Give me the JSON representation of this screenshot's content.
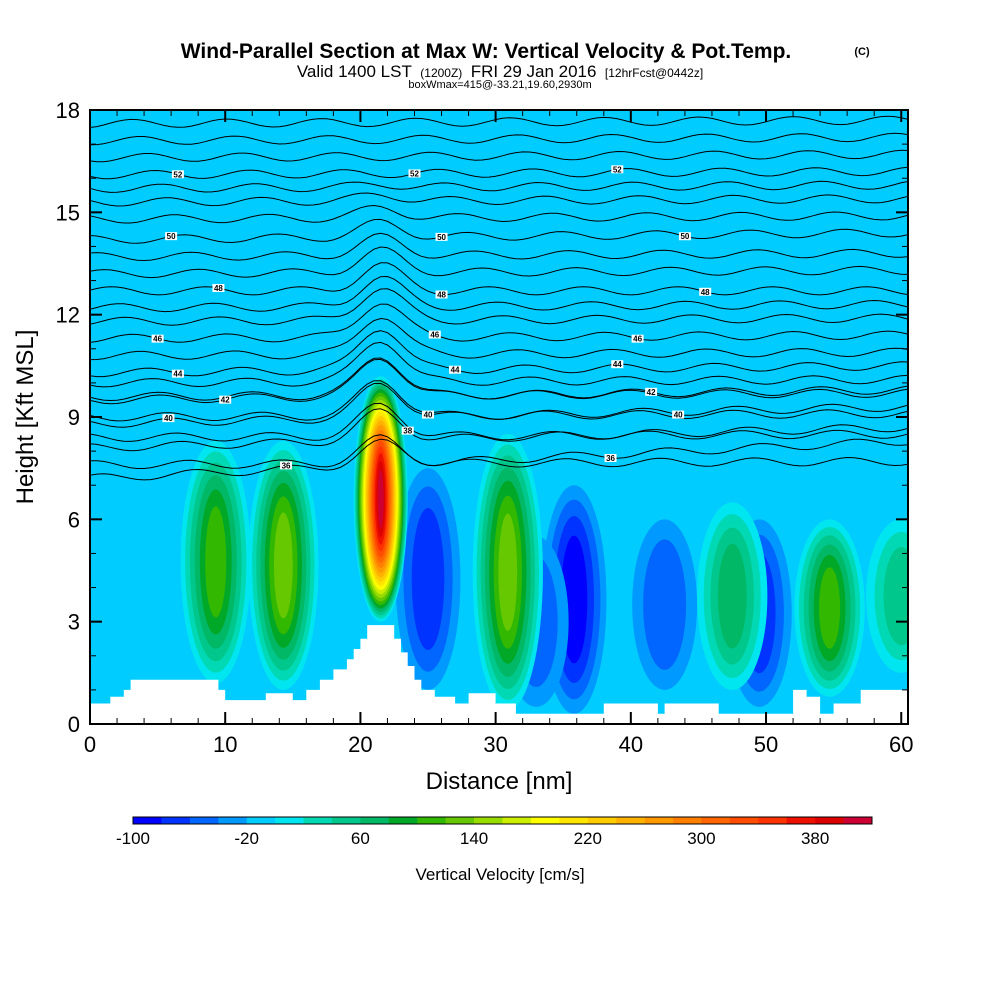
{
  "title": {
    "main": "Wind-Parallel Section at Max W: Vertical Velocity & Pot.Temp.",
    "copyright": "(C)",
    "line2_a": "Valid 1400 LST",
    "line2_b": "(1200Z)",
    "line2_c": "FRI 29 Jan 2016",
    "line2_d": "[12hrFcst@0442z]",
    "line3": "boxWmax=415@-33.21,19.60,2930m"
  },
  "chart_data": {
    "type": "heatmap",
    "xlabel": "Distance [nm]",
    "ylabel": "Height [Kft MSL]",
    "xlim": [
      0,
      60.5
    ],
    "ylim": [
      0,
      18
    ],
    "x_ticks": [
      "0",
      "10",
      "20",
      "30",
      "40",
      "50",
      "60"
    ],
    "y_ticks": [
      "0",
      "3",
      "6",
      "9",
      "12",
      "15",
      "18"
    ],
    "background_w_cms": -10,
    "colorbar": {
      "label": "Vertical Velocity [cm/s]",
      "ticks": [
        "-100",
        "-20",
        "60",
        "140",
        "220",
        "300",
        "380"
      ],
      "min": -100,
      "max": 420,
      "step": 20,
      "colors": [
        "#0000ff",
        "#0033ff",
        "#0066ff",
        "#0099ff",
        "#00ccff",
        "#00e6f0",
        "#00d9b3",
        "#00c88c",
        "#00b866",
        "#00a828",
        "#33b800",
        "#66c800",
        "#99dd00",
        "#ccee00",
        "#ffff00",
        "#ffe600",
        "#ffcc00",
        "#ffb300",
        "#ff9900",
        "#ff8000",
        "#ff6600",
        "#ff4d00",
        "#ff3300",
        "#ee1100",
        "#dd0000",
        "#cc0033"
      ]
    },
    "updraft_cells": [
      {
        "x": 9.3,
        "z_bottom": 1.2,
        "z_top": 8.3,
        "w_max": 110
      },
      {
        "x": 14.3,
        "z_bottom": 1.0,
        "z_top": 8.3,
        "w_max": 130
      },
      {
        "x": 21.5,
        "z_bottom": 3.0,
        "z_top": 10.2,
        "w_max": 415
      },
      {
        "x": 30.9,
        "z_bottom": 0.4,
        "z_top": 8.5,
        "w_max": 140
      },
      {
        "x": 47.5,
        "z_bottom": 1.0,
        "z_top": 6.5,
        "w_max": 80
      },
      {
        "x": 54.7,
        "z_bottom": 0.8,
        "z_top": 6.0,
        "w_max": 120
      },
      {
        "x": 60.0,
        "z_bottom": 1.5,
        "z_top": 6.0,
        "w_max": 60
      }
    ],
    "downdraft_cells": [
      {
        "x": 25.0,
        "z_bottom": 1.0,
        "z_top": 7.5,
        "w_min": -70
      },
      {
        "x": 35.8,
        "z_bottom": 0.3,
        "z_top": 7.0,
        "w_min": -100
      },
      {
        "x": 49.5,
        "z_bottom": 0.5,
        "z_top": 6.0,
        "w_min": -75
      },
      {
        "x": 33.0,
        "z_bottom": 0.5,
        "z_top": 5.5,
        "w_min": -60
      },
      {
        "x": 42.5,
        "z_bottom": 1.0,
        "z_top": 6.0,
        "w_min": -55
      }
    ],
    "theta_contours": [
      {
        "label": "36",
        "z_left": 7.2,
        "z_right": 8.3,
        "label_x": [
          14.5,
          38.5
        ]
      },
      {
        "label": "38",
        "z_left": 8.1,
        "z_right": 8.7,
        "label_x": [
          23.5
        ]
      },
      {
        "label": "40",
        "z_left": 8.8,
        "z_right": 9.3,
        "label_x": [
          5.8,
          25.0,
          43.5
        ]
      },
      {
        "label": "42",
        "z_left": 9.5,
        "z_right": 9.8,
        "label_x": [
          10.0,
          41.5
        ]
      },
      {
        "label": "44",
        "z_left": 10.3,
        "z_right": 10.5,
        "label_x": [
          6.5,
          27.0,
          39.0
        ]
      },
      {
        "label": "46",
        "z_left": 11.3,
        "z_right": 11.4,
        "label_x": [
          5.0,
          25.5,
          40.5
        ]
      },
      {
        "label": "48",
        "z_left": 12.7,
        "z_right": 12.7,
        "label_x": [
          9.5,
          26.0,
          45.5
        ]
      },
      {
        "label": "50",
        "z_left": 14.2,
        "z_right": 14.4,
        "label_x": [
          6.0,
          26.0,
          44.0
        ]
      },
      {
        "label": "52",
        "z_left": 16.1,
        "z_right": 16.2,
        "label_x": [
          6.5,
          24.0,
          39.0
        ]
      }
    ],
    "theta_extra_lines": [
      7.6,
      8.4,
      9.0,
      9.6,
      10.0,
      10.8,
      11.8,
      12.2,
      13.2,
      13.7,
      14.8,
      15.3,
      15.7,
      16.6,
      17.1,
      17.6
    ],
    "terrain_kft": [
      [
        0,
        0.6
      ],
      [
        1.5,
        0.6
      ],
      [
        1.5,
        0.8
      ],
      [
        2.5,
        0.8
      ],
      [
        2.5,
        1.0
      ],
      [
        3,
        1.0
      ],
      [
        3,
        1.3
      ],
      [
        9.5,
        1.3
      ],
      [
        9.5,
        1.0
      ],
      [
        10,
        1.0
      ],
      [
        10,
        0.7
      ],
      [
        13,
        0.7
      ],
      [
        13,
        0.9
      ],
      [
        15,
        0.9
      ],
      [
        15,
        0.7
      ],
      [
        16,
        0.7
      ],
      [
        16,
        1.0
      ],
      [
        17,
        1.0
      ],
      [
        17,
        1.3
      ],
      [
        18,
        1.3
      ],
      [
        18,
        1.6
      ],
      [
        19,
        1.6
      ],
      [
        19,
        1.9
      ],
      [
        19.5,
        1.9
      ],
      [
        19.5,
        2.2
      ],
      [
        20,
        2.2
      ],
      [
        20,
        2.5
      ],
      [
        20.5,
        2.5
      ],
      [
        20.5,
        2.9
      ],
      [
        22.5,
        2.9
      ],
      [
        22.5,
        2.5
      ],
      [
        23,
        2.5
      ],
      [
        23,
        2.1
      ],
      [
        23.5,
        2.1
      ],
      [
        23.5,
        1.7
      ],
      [
        24,
        1.7
      ],
      [
        24,
        1.3
      ],
      [
        24.5,
        1.3
      ],
      [
        24.5,
        1.0
      ],
      [
        25.5,
        1.0
      ],
      [
        25.5,
        0.8
      ],
      [
        27,
        0.8
      ],
      [
        27,
        0.6
      ],
      [
        28,
        0.6
      ],
      [
        28,
        0.9
      ],
      [
        30,
        0.9
      ],
      [
        30,
        0.6
      ],
      [
        31.5,
        0.6
      ],
      [
        31.5,
        0.3
      ],
      [
        38,
        0.3
      ],
      [
        38,
        0.6
      ],
      [
        42,
        0.6
      ],
      [
        42,
        0.3
      ],
      [
        42.5,
        0.3
      ],
      [
        42.5,
        0.6
      ],
      [
        46.5,
        0.6
      ],
      [
        46.5,
        0.3
      ],
      [
        52,
        0.3
      ],
      [
        52,
        1.0
      ],
      [
        53,
        1.0
      ],
      [
        53,
        0.8
      ],
      [
        54,
        0.8
      ],
      [
        54,
        0.3
      ],
      [
        55,
        0.3
      ],
      [
        55,
        0.6
      ],
      [
        57,
        0.6
      ],
      [
        57,
        1.0
      ],
      [
        60.5,
        1.0
      ],
      [
        60.5,
        0
      ]
    ]
  }
}
